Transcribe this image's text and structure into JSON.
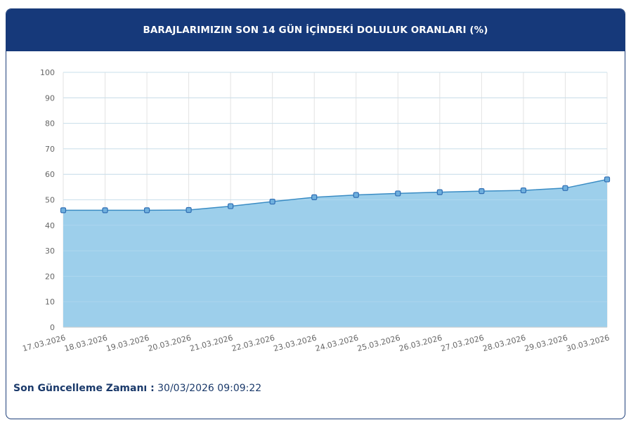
{
  "header": {
    "title": "BARAJLARIMIZIN SON 14 GÜN İÇİNDEKİ DOLULUK ORANLARI (%)"
  },
  "footer": {
    "label": "Son Güncelleme Zamanı :",
    "value": "30/03/2026 09:09:22"
  },
  "colors": {
    "header_bg": "#16397a",
    "area_fill": "#9dcfeb",
    "line": "#3a8cc4",
    "marker": "#2f6db3"
  },
  "chart_data": {
    "type": "area",
    "title": "BARAJLARIMIZIN SON 14 GÜN İÇİNDEKİ DOLULUK ORANLARI (%)",
    "xlabel": "",
    "ylabel": "",
    "ylim": [
      0,
      100
    ],
    "yticks": [
      0,
      10,
      20,
      30,
      40,
      50,
      60,
      70,
      80,
      90,
      100
    ],
    "grid": true,
    "legend": "none",
    "categories": [
      "17.03.2026",
      "18.03.2026",
      "19.03.2026",
      "20.03.2026",
      "21.03.2026",
      "22.03.2026",
      "23.03.2026",
      "24.03.2026",
      "25.03.2026",
      "26.03.2026",
      "27.03.2026",
      "28.03.2026",
      "29.03.2026",
      "30.03.2026"
    ],
    "values": [
      45.9,
      45.9,
      45.9,
      46.0,
      47.5,
      49.3,
      51.0,
      51.9,
      52.5,
      53.0,
      53.4,
      53.7,
      54.6,
      58.0
    ]
  }
}
